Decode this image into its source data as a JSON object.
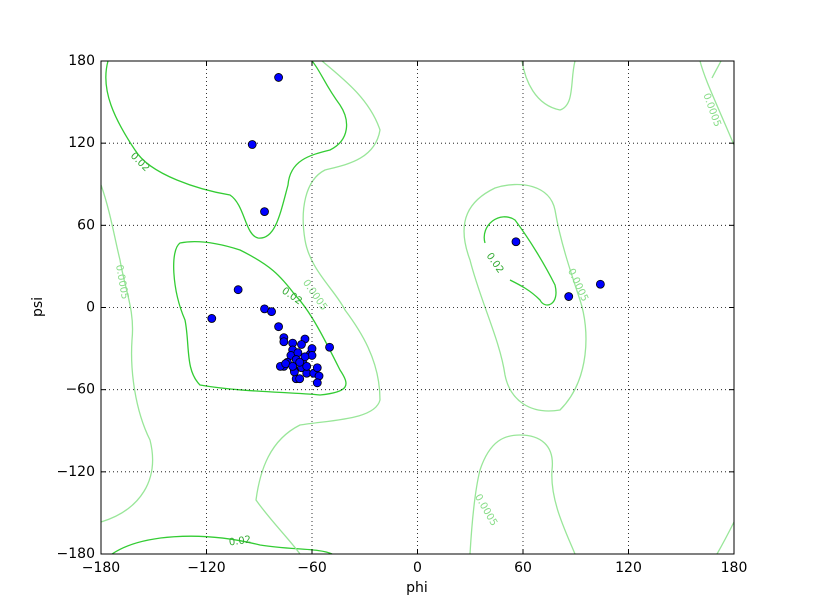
{
  "chart_data": {
    "type": "scatter",
    "x_label": "phi",
    "y_label": "psi",
    "x": [
      -79,
      -94,
      -87,
      56,
      86,
      104,
      -102,
      -117,
      -87,
      -83,
      -79,
      -76,
      -76,
      -64,
      -50,
      -71,
      -71,
      -72,
      -68,
      -74,
      -76,
      -78,
      -75,
      -69,
      -65,
      -61,
      -60,
      -60,
      -64,
      -66,
      -70,
      -69,
      -67,
      -63,
      -59,
      -57,
      -56,
      -57,
      -70,
      -67,
      -63,
      -71,
      -66
    ],
    "values": [
      168,
      119,
      70,
      48,
      8,
      17,
      13,
      -8,
      -1,
      -3,
      -14,
      -22,
      -25,
      -23,
      -29,
      -26,
      -31,
      -35,
      -33,
      -40,
      -43,
      -43,
      -41,
      -38,
      -41,
      -34,
      -30,
      -35,
      -36,
      -44,
      -46,
      -52,
      -52,
      -48,
      -48,
      -44,
      -50,
      -55,
      -47,
      -40,
      -43,
      -43,
      -27
    ],
    "color": "#0000ff",
    "xlim": [
      -180,
      180
    ],
    "ylim": [
      -180,
      180
    ],
    "xticks": [
      {
        "value": -180,
        "label": "−180"
      },
      {
        "value": -120,
        "label": "−120"
      },
      {
        "value": -60,
        "label": "−60"
      },
      0,
      60,
      120,
      180
    ],
    "yticks": [
      {
        "value": -180,
        "label": "−180"
      },
      {
        "value": -120,
        "label": "−120"
      },
      {
        "value": -60,
        "label": "−60"
      },
      0,
      60,
      120,
      180
    ],
    "grid": true,
    "contour_labels": [
      "0.02",
      "0.02",
      "0.02",
      "0.02",
      "0.0005",
      "0.0005",
      "0.0005",
      "0.0005",
      "0.0005"
    ]
  }
}
